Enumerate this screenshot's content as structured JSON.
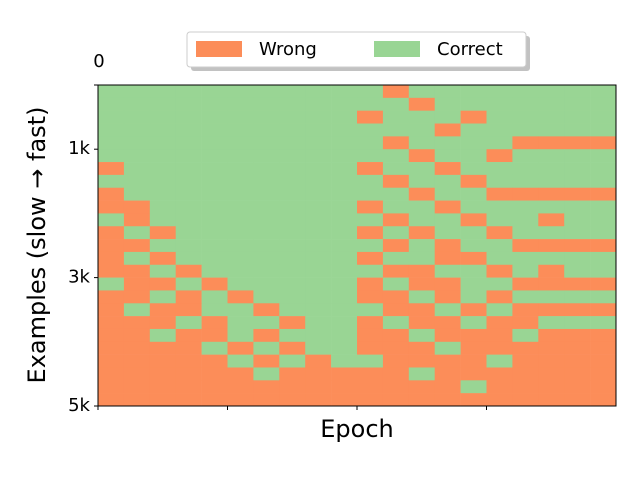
{
  "chart_data": {
    "type": "heatmap",
    "x_label": "Epoch",
    "y_label": "Examples (slow → fast)",
    "xlim": [
      0,
      20
    ],
    "xticks": [
      0,
      5,
      10,
      15
    ],
    "ylim": [
      0,
      5000
    ],
    "yticks": [
      0,
      {
        "value": 1000,
        "label": "1k"
      },
      {
        "value": 3000,
        "label": "3k"
      },
      {
        "value": 5000,
        "label": "5k"
      }
    ],
    "legend": [
      {
        "name": "Wrong",
        "value": 0,
        "color": "#fc8d59"
      },
      {
        "name": "Correct",
        "value": 1,
        "color": "#99d594"
      }
    ],
    "z": [
      [
        1,
        1,
        1,
        1,
        1,
        1,
        1,
        1,
        1,
        1,
        1,
        0,
        1,
        1,
        1,
        1,
        1,
        1,
        1,
        1
      ],
      [
        1,
        1,
        1,
        1,
        1,
        1,
        1,
        1,
        1,
        1,
        1,
        1,
        0,
        1,
        1,
        1,
        1,
        1,
        1,
        1
      ],
      [
        1,
        1,
        1,
        1,
        1,
        1,
        1,
        1,
        1,
        1,
        0,
        1,
        1,
        1,
        0,
        1,
        1,
        1,
        1,
        1
      ],
      [
        1,
        1,
        1,
        1,
        1,
        1,
        1,
        1,
        1,
        1,
        1,
        1,
        1,
        0,
        1,
        1,
        1,
        1,
        1,
        1
      ],
      [
        1,
        1,
        1,
        1,
        1,
        1,
        1,
        1,
        1,
        1,
        1,
        0,
        1,
        1,
        1,
        1,
        0,
        0,
        0,
        0
      ],
      [
        1,
        1,
        1,
        1,
        1,
        1,
        1,
        1,
        1,
        1,
        1,
        1,
        0,
        1,
        1,
        0,
        1,
        1,
        1,
        1
      ],
      [
        0,
        1,
        1,
        1,
        1,
        1,
        1,
        1,
        1,
        1,
        0,
        1,
        1,
        0,
        1,
        1,
        1,
        1,
        1,
        1
      ],
      [
        1,
        1,
        1,
        1,
        1,
        1,
        1,
        1,
        1,
        1,
        1,
        0,
        1,
        1,
        0,
        1,
        1,
        1,
        1,
        1
      ],
      [
        0,
        1,
        1,
        1,
        1,
        1,
        1,
        1,
        1,
        1,
        1,
        1,
        0,
        1,
        1,
        0,
        0,
        0,
        0,
        0
      ],
      [
        0,
        0,
        1,
        1,
        1,
        1,
        1,
        1,
        1,
        1,
        0,
        1,
        1,
        0,
        1,
        1,
        1,
        1,
        1,
        1
      ],
      [
        1,
        0,
        1,
        1,
        1,
        1,
        1,
        1,
        1,
        1,
        1,
        0,
        1,
        1,
        0,
        1,
        1,
        0,
        1,
        1
      ],
      [
        0,
        1,
        0,
        1,
        1,
        1,
        1,
        1,
        1,
        1,
        0,
        1,
        0,
        1,
        1,
        0,
        1,
        1,
        1,
        1
      ],
      [
        0,
        0,
        1,
        1,
        1,
        1,
        1,
        1,
        1,
        1,
        1,
        0,
        1,
        0,
        1,
        1,
        0,
        0,
        0,
        0
      ],
      [
        0,
        1,
        0,
        1,
        1,
        1,
        1,
        1,
        1,
        1,
        0,
        1,
        1,
        0,
        0,
        1,
        1,
        1,
        1,
        1
      ],
      [
        0,
        0,
        1,
        0,
        1,
        1,
        1,
        1,
        1,
        1,
        1,
        0,
        0,
        1,
        1,
        0,
        1,
        0,
        1,
        1
      ],
      [
        1,
        0,
        0,
        1,
        0,
        1,
        1,
        1,
        1,
        1,
        0,
        1,
        0,
        0,
        1,
        1,
        0,
        0,
        0,
        0
      ],
      [
        0,
        0,
        1,
        0,
        1,
        0,
        1,
        1,
        1,
        1,
        0,
        0,
        1,
        0,
        1,
        0,
        1,
        1,
        1,
        1
      ],
      [
        0,
        1,
        0,
        0,
        1,
        1,
        0,
        1,
        1,
        1,
        1,
        0,
        0,
        1,
        0,
        1,
        0,
        0,
        0,
        0
      ],
      [
        0,
        0,
        0,
        1,
        0,
        1,
        1,
        0,
        1,
        1,
        0,
        1,
        0,
        0,
        1,
        0,
        0,
        1,
        1,
        1
      ],
      [
        0,
        0,
        1,
        0,
        0,
        1,
        0,
        1,
        1,
        1,
        0,
        0,
        1,
        0,
        0,
        0,
        1,
        0,
        0,
        0
      ],
      [
        0,
        0,
        0,
        0,
        1,
        0,
        1,
        0,
        1,
        1,
        0,
        0,
        0,
        1,
        0,
        0,
        0,
        0,
        0,
        0
      ],
      [
        0,
        0,
        0,
        0,
        0,
        1,
        0,
        1,
        0,
        1,
        1,
        0,
        0,
        0,
        0,
        1,
        0,
        0,
        0,
        0
      ],
      [
        0,
        0,
        0,
        0,
        0,
        0,
        1,
        0,
        0,
        0,
        0,
        0,
        1,
        0,
        0,
        0,
        0,
        0,
        0,
        0
      ],
      [
        0,
        0,
        0,
        0,
        0,
        0,
        0,
        0,
        0,
        0,
        0,
        0,
        0,
        0,
        1,
        0,
        0,
        0,
        0,
        0
      ],
      [
        0,
        0,
        0,
        0,
        0,
        0,
        0,
        0,
        0,
        0,
        0,
        0,
        0,
        0,
        0,
        0,
        0,
        0,
        0,
        0
      ]
    ]
  }
}
